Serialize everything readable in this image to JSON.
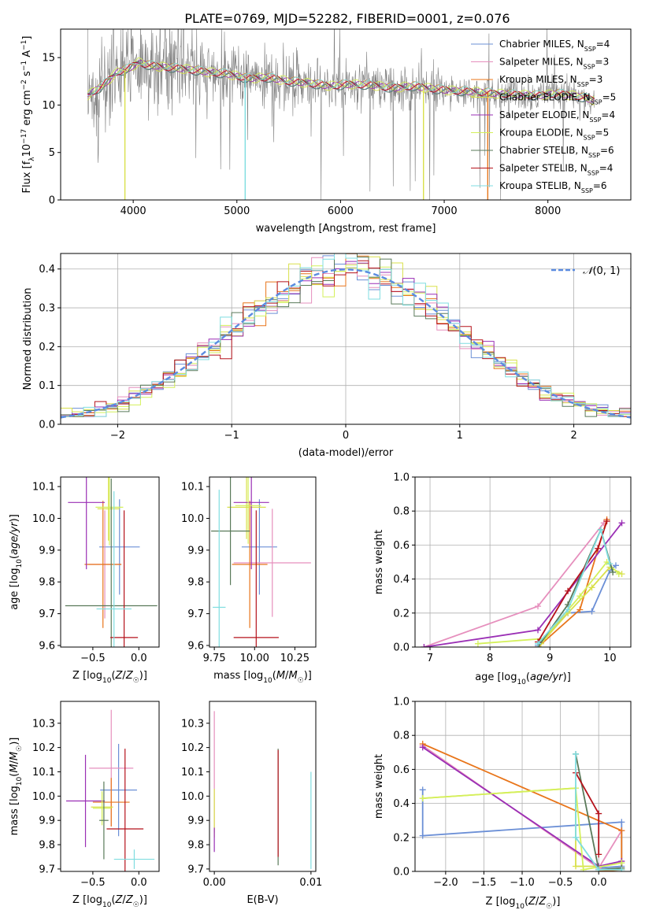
{
  "title": "PLATE=0769, MJD=52282, FIBERID=0001, z=0.076",
  "colors": {
    "Chabrier MILES": "#6b8fd6",
    "Salpeter MILES": "#e68fbd",
    "Kroupa MILES": "#e8751a",
    "Chabrier ELODIE": "#d9e04a",
    "Salpeter ELODIE": "#9a2fb5",
    "Kroupa ELODIE": "#d4f05a",
    "Chabrier STELIB": "#5a7a5a",
    "Salpeter STELIB": "#b5121b",
    "Kroupa STELIB": "#7fdde0",
    "data": "#808080",
    "gaussian": "#5b8be0"
  },
  "chart_data": [
    {
      "type": "line",
      "panel": "spectrum",
      "xlabel": "wavelength [Angstrom, rest frame]",
      "ylabel": "Flux [f_λ10^-17 erg cm^-2 s^-1 A^-1]",
      "xlim": [
        3300,
        8800
      ],
      "ylim": [
        0,
        18
      ],
      "xticks": [
        "4000",
        "5000",
        "6000",
        "7000",
        "8000"
      ],
      "yticks": [
        "0",
        "5",
        "10",
        "15"
      ],
      "legend_position": "right",
      "legend": [
        {
          "name": "Chabrier MILES",
          "nssp": "4"
        },
        {
          "name": "Salpeter MILES",
          "nssp": "3"
        },
        {
          "name": "Kroupa MILES",
          "nssp": "3"
        },
        {
          "name": "Chabrier ELODIE",
          "nssp": "5"
        },
        {
          "name": "Salpeter ELODIE",
          "nssp": "4"
        },
        {
          "name": "Kroupa ELODIE",
          "nssp": "5"
        },
        {
          "name": "Chabrier STELIB",
          "nssp": "6"
        },
        {
          "name": "Salpeter STELIB",
          "nssp": "4"
        },
        {
          "name": "Kroupa STELIB",
          "nssp": "6"
        }
      ],
      "model_continuum": [
        [
          3560,
          11.0
        ],
        [
          3700,
          12.0
        ],
        [
          3850,
          13.5
        ],
        [
          3950,
          13.8
        ],
        [
          4050,
          14.5
        ],
        [
          4150,
          14.2
        ],
        [
          4300,
          14.0
        ],
        [
          4500,
          13.8
        ],
        [
          4700,
          13.5
        ],
        [
          4900,
          13.3
        ],
        [
          5100,
          12.8
        ],
        [
          5300,
          12.9
        ],
        [
          5500,
          12.5
        ],
        [
          5700,
          12.3
        ],
        [
          5900,
          12.0
        ],
        [
          6100,
          12.2
        ],
        [
          6300,
          12.1
        ],
        [
          6500,
          11.8
        ],
        [
          6700,
          12.0
        ],
        [
          6900,
          11.7
        ],
        [
          7100,
          11.5
        ],
        [
          7300,
          11.4
        ],
        [
          7500,
          11.2
        ],
        [
          7700,
          11.1
        ],
        [
          7900,
          11.0
        ],
        [
          8100,
          11.2
        ],
        [
          8300,
          10.9
        ],
        [
          8450,
          10.5
        ]
      ]
    },
    {
      "type": "histogram",
      "panel": "residuals",
      "xlabel": "(data-model)/error",
      "ylabel": "Normed distribution",
      "xlim": [
        -2.5,
        2.5
      ],
      "ylim": [
        0,
        0.44
      ],
      "xticks": [
        "-2",
        "-1",
        "0",
        "1",
        "2"
      ],
      "yticks": [
        "0.0",
        "0.1",
        "0.2",
        "0.3",
        "0.4"
      ],
      "grid": true,
      "legend_label": "N(0,1)",
      "legend_position": "top-right",
      "bin_width": 0.1,
      "reference_curve": "normal(0,1)"
    },
    {
      "type": "errorbar",
      "panel": "age-vs-Z",
      "xlabel": "Z [log10(Z/Z☉)]",
      "ylabel": "age [log10(age/yr)]",
      "xlim": [
        -0.85,
        0.22
      ],
      "ylim": [
        9.595,
        10.13
      ],
      "xticks": [
        "-0.5",
        "0.0"
      ],
      "yticks": [
        "9.6",
        "9.7",
        "9.8",
        "9.9",
        "10.0",
        "10.1"
      ],
      "points": [
        {
          "series": "Chabrier MILES",
          "x": -0.21,
          "xerr": 0.22,
          "y": 9.91,
          "yerr": 0.15
        },
        {
          "series": "Salpeter MILES",
          "x": -0.37,
          "xerr": 0.18,
          "y": 9.855,
          "yerr": 0.17
        },
        {
          "series": "Kroupa MILES",
          "x": -0.39,
          "xerr": 0.2,
          "y": 9.855,
          "yerr": 0.2
        },
        {
          "series": "Chabrier ELODIE",
          "x": -0.33,
          "xerr": 0.12,
          "y": 10.03,
          "yerr": 0.1
        },
        {
          "series": "Salpeter ELODIE",
          "x": -0.57,
          "xerr": 0.2,
          "y": 10.05,
          "yerr": 0.21
        },
        {
          "series": "Kroupa ELODIE",
          "x": -0.32,
          "xerr": 0.15,
          "y": 10.035,
          "yerr": 0.12
        },
        {
          "series": "Chabrier STELIB",
          "x": -0.3,
          "xerr": 0.5,
          "y": 9.725,
          "yerr": 0.4
        },
        {
          "series": "Salpeter STELIB",
          "x": -0.16,
          "xerr": 0.15,
          "y": 9.625,
          "yerr": 0.4
        },
        {
          "series": "Kroupa STELIB",
          "x": -0.27,
          "xerr": 0.19,
          "y": 9.715,
          "yerr": 0.37
        }
      ]
    },
    {
      "type": "errorbar",
      "panel": "age-vs-mass",
      "xlabel": "mass [log10(M/M☉)]",
      "ylabel": "",
      "xlim": [
        9.72,
        10.38
      ],
      "ylim": [
        9.595,
        10.13
      ],
      "xticks": [
        "9.75",
        "10.00",
        "10.25"
      ],
      "yticks": [
        "9.6",
        "9.7",
        "9.8",
        "9.9",
        "10.0",
        "10.1"
      ],
      "points": [
        {
          "series": "Chabrier MILES",
          "x": 10.03,
          "xerr": 0.11,
          "y": 9.91,
          "yerr": 0.15
        },
        {
          "series": "Salpeter MILES",
          "x": 10.11,
          "xerr": 0.24,
          "y": 9.86,
          "yerr": 0.17
        },
        {
          "series": "Kroupa MILES",
          "x": 9.97,
          "xerr": 0.11,
          "y": 9.855,
          "yerr": 0.2
        },
        {
          "series": "Chabrier ELODIE",
          "x": 9.95,
          "xerr": 0.12,
          "y": 10.035,
          "yerr": 0.1
        },
        {
          "series": "Salpeter ELODIE",
          "x": 9.98,
          "xerr": 0.11,
          "y": 10.05,
          "yerr": 0.21
        },
        {
          "series": "Kroupa ELODIE",
          "x": 9.96,
          "xerr": 0.08,
          "y": 10.04,
          "yerr": 0.12
        },
        {
          "series": "Chabrier STELIB",
          "x": 9.85,
          "xerr": 0.12,
          "y": 9.96,
          "yerr": 0.17
        },
        {
          "series": "Salpeter STELIB",
          "x": 10.01,
          "xerr": 0.14,
          "y": 9.625,
          "yerr": 0.4
        },
        {
          "series": "Kroupa STELIB",
          "x": 9.78,
          "xerr": 0.04,
          "y": 9.72,
          "yerr": 0.37
        }
      ]
    },
    {
      "type": "line",
      "panel": "mass-weight-vs-age",
      "xlabel": "age [log10(age/yr)]",
      "ylabel": "mass weight",
      "xlim": [
        6.75,
        10.35
      ],
      "ylim": [
        0,
        1.0
      ],
      "xticks": [
        "7",
        "8",
        "9",
        "10"
      ],
      "yticks": [
        "0.0",
        "0.2",
        "0.4",
        "0.6",
        "0.8",
        "1.0"
      ],
      "grid": true,
      "series": [
        {
          "series": "Chabrier MILES",
          "points": [
            [
              8.8,
              0.01
            ],
            [
              9.3,
              0.2
            ],
            [
              9.7,
              0.21
            ],
            [
              10.0,
              0.45
            ],
            [
              10.1,
              0.48
            ]
          ]
        },
        {
          "series": "Salpeter MILES",
          "points": [
            [
              6.9,
              0.0
            ],
            [
              8.8,
              0.24
            ],
            [
              9.9,
              0.73
            ]
          ]
        },
        {
          "series": "Kroupa MILES",
          "points": [
            [
              8.8,
              0.0
            ],
            [
              9.5,
              0.22
            ],
            [
              9.95,
              0.75
            ]
          ]
        },
        {
          "series": "Chabrier ELODIE",
          "points": [
            [
              8.85,
              0.02
            ],
            [
              9.3,
              0.2
            ],
            [
              9.7,
              0.35
            ],
            [
              10.0,
              0.47
            ],
            [
              10.2,
              0.43
            ]
          ]
        },
        {
          "series": "Salpeter ELODIE",
          "points": [
            [
              6.9,
              0.0
            ],
            [
              8.8,
              0.1
            ],
            [
              10.2,
              0.73
            ]
          ]
        },
        {
          "series": "Kroupa ELODIE",
          "points": [
            [
              7.8,
              0.02
            ],
            [
              8.9,
              0.05
            ],
            [
              9.5,
              0.3
            ],
            [
              9.95,
              0.5
            ],
            [
              10.15,
              0.43
            ]
          ]
        },
        {
          "series": "Chabrier STELIB",
          "points": [
            [
              8.8,
              0.0
            ],
            [
              9.3,
              0.25
            ],
            [
              9.85,
              0.69
            ],
            [
              10.05,
              0.44
            ]
          ]
        },
        {
          "series": "Salpeter STELIB",
          "points": [
            [
              8.8,
              0.03
            ],
            [
              9.3,
              0.33
            ],
            [
              9.8,
              0.58
            ],
            [
              9.95,
              0.74
            ]
          ]
        },
        {
          "series": "Kroupa STELIB",
          "points": [
            [
              8.8,
              0.02
            ],
            [
              9.3,
              0.22
            ],
            [
              9.85,
              0.69
            ],
            [
              10.0,
              0.49
            ]
          ]
        }
      ]
    },
    {
      "type": "errorbar",
      "panel": "mass-vs-Z",
      "xlabel": "Z [log10(Z/Z☉)]",
      "ylabel": "mass [log10(M/M☉)]",
      "xlim": [
        -0.85,
        0.22
      ],
      "ylim": [
        9.69,
        10.39
      ],
      "xticks": [
        "-0.5",
        "0.0"
      ],
      "yticks": [
        "9.7",
        "9.8",
        "9.9",
        "10.0",
        "10.1",
        "10.2",
        "10.3"
      ],
      "points": [
        {
          "series": "Chabrier MILES",
          "x": -0.22,
          "xerr": 0.2,
          "y": 10.025,
          "yerr": 0.19
        },
        {
          "series": "Salpeter MILES",
          "x": -0.3,
          "xerr": 0.24,
          "y": 10.115,
          "yerr": 0.24
        },
        {
          "series": "Kroupa MILES",
          "x": -0.3,
          "xerr": 0.2,
          "y": 9.975,
          "yerr": 0.1
        },
        {
          "series": "Chabrier ELODIE",
          "x": -0.4,
          "xerr": 0.12,
          "y": 9.955,
          "yerr": 0.06
        },
        {
          "series": "Salpeter ELODIE",
          "x": -0.58,
          "xerr": 0.21,
          "y": 9.98,
          "yerr": 0.19
        },
        {
          "series": "Kroupa ELODIE",
          "x": -0.4,
          "xerr": 0.1,
          "y": 9.95,
          "yerr": 0.07
        },
        {
          "series": "Chabrier STELIB",
          "x": -0.38,
          "xerr": 0.05,
          "y": 9.9,
          "yerr": 0.16
        },
        {
          "series": "Salpeter STELIB",
          "x": -0.15,
          "xerr": 0.2,
          "y": 9.865,
          "yerr": 0.33
        },
        {
          "series": "Kroupa STELIB",
          "x": -0.05,
          "xerr": 0.22,
          "y": 9.74,
          "yerr": 0.04
        }
      ]
    },
    {
      "type": "errorbar",
      "panel": "mass-vs-EBV",
      "xlabel": "E(B-V)",
      "ylabel": "",
      "xlim": [
        -0.0005,
        0.0105
      ],
      "ylim": [
        9.69,
        10.39
      ],
      "xticks": [
        "0.00",
        "0.01"
      ],
      "yticks": [
        "9.7",
        "9.8",
        "9.9",
        "10.0",
        "10.1",
        "10.2",
        "10.3"
      ],
      "points": [
        {
          "series": "Salpeter MILES",
          "x": 0.0,
          "y": 10.1,
          "yerr": 0.25
        },
        {
          "series": "Chabrier ELODIE",
          "x": 0.0,
          "y": 9.93,
          "yerr": 0.1
        },
        {
          "series": "Salpeter ELODIE",
          "x": 0.0,
          "y": 9.82,
          "yerr": 0.05
        },
        {
          "series": "Chabrier STELIB",
          "x": 0.0066,
          "y": 9.955,
          "yerr": 0.24
        },
        {
          "series": "Salpeter STELIB",
          "x": 0.0066,
          "y": 9.97,
          "yerr": 0.22
        },
        {
          "series": "Kroupa STELIB",
          "x": 0.01,
          "y": 9.9,
          "yerr": 0.2
        }
      ]
    },
    {
      "type": "line",
      "panel": "mass-weight-vs-Z",
      "xlabel": "Z [log10(Z/Z☉)]",
      "ylabel": "mass weight",
      "xlim": [
        -2.4,
        0.42
      ],
      "ylim": [
        0,
        1.0
      ],
      "xticks": [
        "-2.0",
        "-1.5",
        "-1.0",
        "-0.5",
        "0.0"
      ],
      "yticks": [
        "0.0",
        "0.2",
        "0.4",
        "0.6",
        "0.8",
        "1.0"
      ],
      "grid": true,
      "series": [
        {
          "series": "Chabrier MILES",
          "points": [
            [
              -2.3,
              0.48
            ],
            [
              -2.3,
              0.21
            ],
            [
              0.3,
              0.29
            ],
            [
              0.3,
              0.03
            ],
            [
              0.0,
              0.02
            ]
          ]
        },
        {
          "series": "Salpeter MILES",
          "points": [
            [
              -2.3,
              0.74
            ],
            [
              0.0,
              0.02
            ],
            [
              0.3,
              0.24
            ]
          ]
        },
        {
          "series": "Kroupa MILES",
          "points": [
            [
              -2.3,
              0.75
            ],
            [
              0.3,
              0.24
            ],
            [
              0.3,
              0.01
            ],
            [
              0.0,
              0.0
            ]
          ]
        },
        {
          "series": "Chabrier ELODIE",
          "points": [
            [
              -2.3,
              0.43
            ],
            [
              -0.3,
              0.49
            ],
            [
              -0.3,
              0.03
            ],
            [
              0.0,
              0.03
            ]
          ]
        },
        {
          "series": "Salpeter ELODIE",
          "points": [
            [
              -2.3,
              0.73
            ],
            [
              0.0,
              0.03
            ],
            [
              0.3,
              0.06
            ]
          ]
        },
        {
          "series": "Kroupa ELODIE",
          "points": [
            [
              -2.3,
              0.43
            ],
            [
              -0.3,
              0.49
            ],
            [
              -0.2,
              0.01
            ],
            [
              0.3,
              0.05
            ]
          ]
        },
        {
          "series": "Chabrier STELIB",
          "points": [
            [
              -0.3,
              0.69
            ],
            [
              0.0,
              0.01
            ],
            [
              0.3,
              0.02
            ]
          ]
        },
        {
          "series": "Salpeter STELIB",
          "points": [
            [
              -0.3,
              0.58
            ],
            [
              0.0,
              0.34
            ],
            [
              0.0,
              0.1
            ]
          ]
        },
        {
          "series": "Kroupa STELIB",
          "points": [
            [
              -0.3,
              0.69
            ],
            [
              -0.3,
              0.2
            ],
            [
              0.0,
              0.01
            ],
            [
              0.3,
              0.01
            ]
          ]
        }
      ]
    }
  ]
}
